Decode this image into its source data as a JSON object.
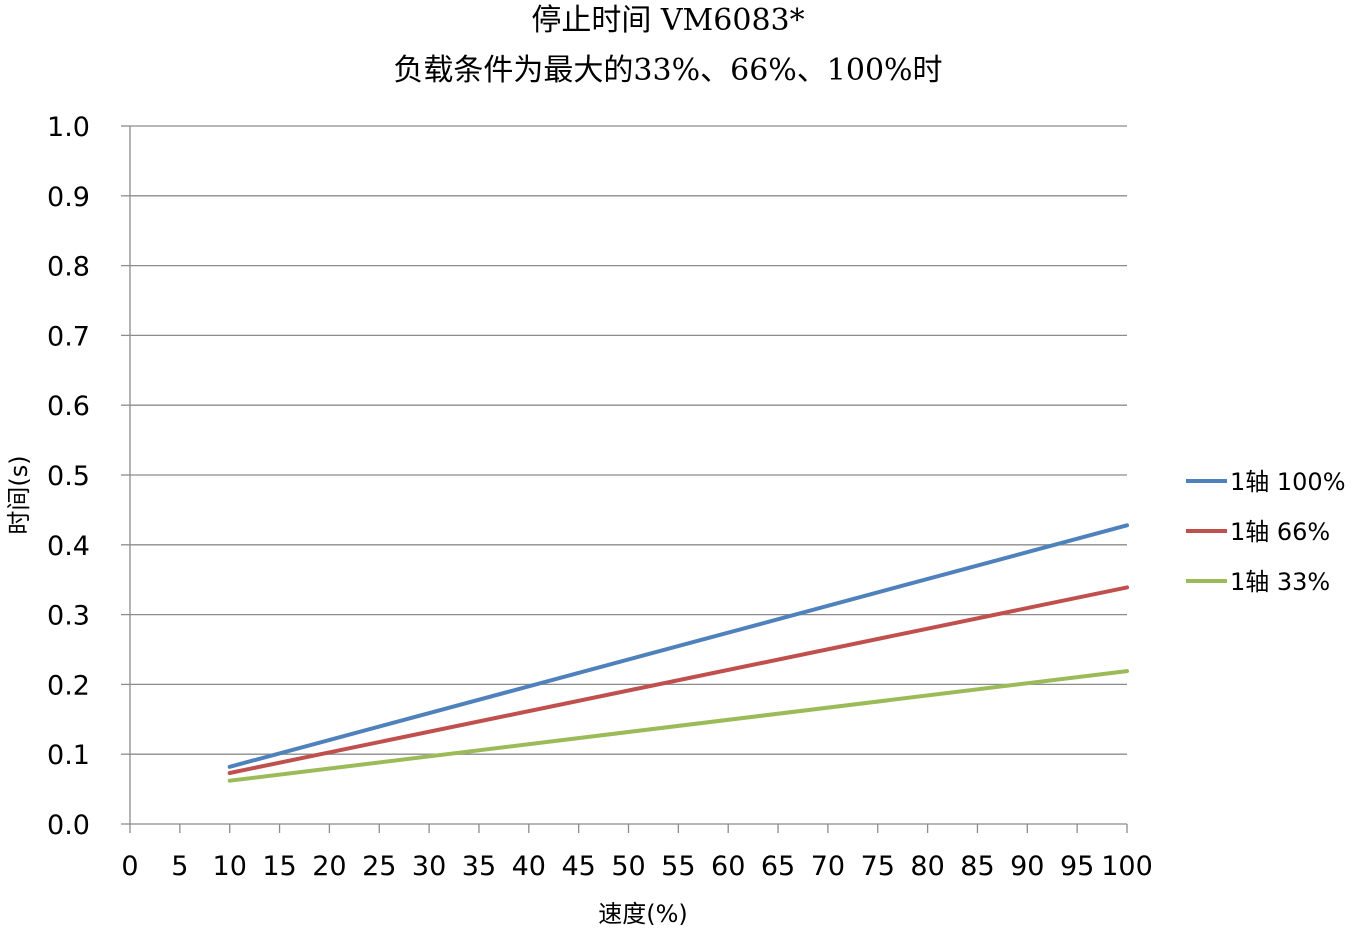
{
  "chart_data": {
    "type": "line",
    "title": "停止时间 VM6083*",
    "subtitle": "负载条件为最大的33%、66%、100%时",
    "xlabel": "速度(%)",
    "ylabel": "时间(s)",
    "xlim": [
      0,
      100
    ],
    "ylim": [
      0,
      1.0
    ],
    "x_ticks": [
      "0",
      "5",
      "10",
      "15",
      "20",
      "25",
      "30",
      "35",
      "40",
      "45",
      "50",
      "55",
      "60",
      "65",
      "70",
      "75",
      "80",
      "85",
      "90",
      "95",
      "100"
    ],
    "y_ticks": [
      "0.0",
      "0.1",
      "0.2",
      "0.3",
      "0.4",
      "0.5",
      "0.6",
      "0.7",
      "0.8",
      "0.9",
      "1.0"
    ],
    "x": [
      10,
      100
    ],
    "grid": true,
    "legend_position": "right",
    "series": [
      {
        "name": "1轴  100%",
        "color": "#4f81bd",
        "values": [
          0.082,
          0.428
        ]
      },
      {
        "name": "1轴  66%",
        "color": "#c0504d",
        "values": [
          0.073,
          0.339
        ]
      },
      {
        "name": "1轴  33%",
        "color": "#9bbb59",
        "values": [
          0.062,
          0.219
        ]
      }
    ]
  }
}
